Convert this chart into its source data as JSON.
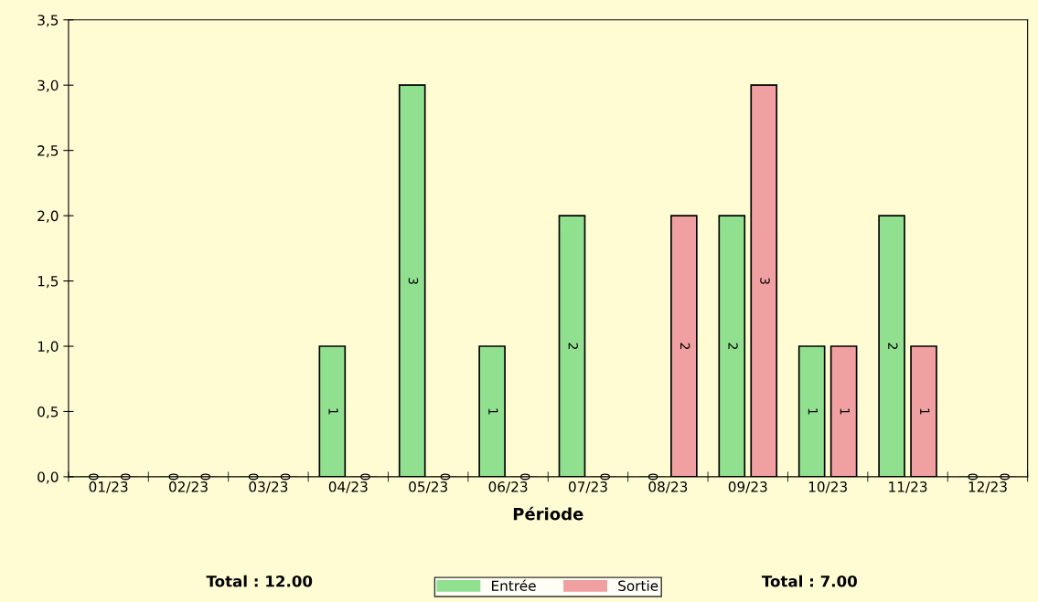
{
  "chart_data": {
    "type": "bar",
    "xlabel": "Période",
    "categories": [
      "01/23",
      "02/23",
      "03/23",
      "04/23",
      "05/23",
      "06/23",
      "07/23",
      "08/23",
      "09/23",
      "10/23",
      "11/23",
      "12/23"
    ],
    "series": [
      {
        "name": "Entrée",
        "color": "#90e090",
        "values": [
          0,
          0,
          0,
          1,
          3,
          1,
          2,
          0,
          2,
          1,
          2,
          0
        ]
      },
      {
        "name": "Sortie",
        "color": "#f0a0a0",
        "values": [
          0,
          0,
          0,
          0,
          0,
          0,
          0,
          2,
          3,
          1,
          1,
          0
        ]
      }
    ],
    "ylim": [
      0,
      3.5
    ],
    "yticks": [
      {
        "value": 0,
        "label": "0,0"
      },
      {
        "value": 0.5,
        "label": "0,5"
      },
      {
        "value": 1,
        "label": "1,0"
      },
      {
        "value": 1.5,
        "label": "1,5"
      },
      {
        "value": 2,
        "label": "2,0"
      },
      {
        "value": 2.5,
        "label": "2,5"
      },
      {
        "value": 3,
        "label": "3,0"
      },
      {
        "value": 3.5,
        "label": "3,5"
      }
    ],
    "data_labels": true,
    "legend": "bottom",
    "grid": false,
    "annotations": [
      "Total : 12.00",
      "Total : 7.00"
    ]
  }
}
